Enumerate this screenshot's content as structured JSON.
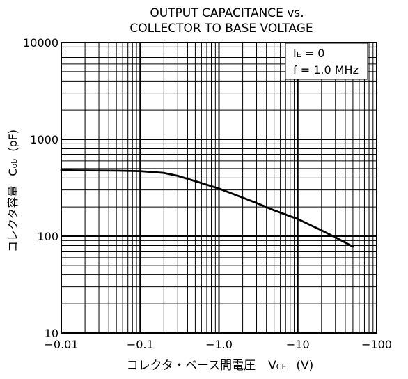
{
  "chart_data": {
    "type": "line",
    "title_line1": "OUTPUT CAPACITANCE vs.",
    "title_line2": "COLLECTOR TO BASE VOLTAGE",
    "x_label": {
      "main": "コレクタ・ベース間電圧",
      "symbol": "V",
      "sub": "CE",
      "unit": "(V)"
    },
    "y_label": {
      "main": "コレクタ容量",
      "symbol": "C",
      "sub": "ob",
      "unit": "(pF)"
    },
    "x_scale": "log",
    "y_scale": "log",
    "x_axis_note": "magnitude of negative voltage; ticks show negative values",
    "x_ticks": [
      "-0.01",
      "-0.1",
      "-1.0",
      "-10",
      "-100"
    ],
    "y_ticks": [
      "10",
      "100",
      "1000",
      "10000"
    ],
    "xlim_magnitude": [
      0.01,
      100
    ],
    "ylim": [
      10,
      10000
    ],
    "grid": true,
    "legend_box": {
      "line1": {
        "symbol": "I",
        "sub": "E",
        "rest": " = 0"
      },
      "line2": "f = 1.0 MHz",
      "placement": "top-right"
    },
    "series": [
      {
        "x": [
          -0.01,
          -0.02,
          -0.05,
          -0.1,
          -0.2,
          -0.3,
          -0.5,
          -1.0,
          -2.0,
          -3.0,
          -5.0,
          -10,
          -20,
          -30,
          -50
        ],
        "y": [
          480,
          478,
          475,
          470,
          450,
          420,
          370,
          310,
          250,
          220,
          185,
          150,
          115,
          97,
          78
        ]
      }
    ],
    "line_color": "#000000",
    "background": "#ffffff"
  }
}
